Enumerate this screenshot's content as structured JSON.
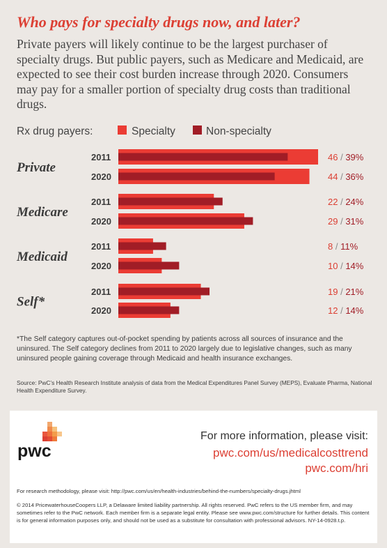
{
  "title": "Who pays for specialty drugs now, and later?",
  "intro": "Private payers will likely continue to be the largest purchaser of specialty drugs. But public payers, such as Medicare and Medicaid, are expected to see their cost burden increase through 2020. Consumers may pay for a smaller portion of specialty drug costs than traditional drugs.",
  "legend": {
    "label": "Rx drug payers:",
    "specialty": "Specialty",
    "nonspecialty": "Non-specialty"
  },
  "colors": {
    "specialty": "#eb3c34",
    "nonspecialty": "#a11d26",
    "accent": "#dc3f33",
    "background": "#ece8e4"
  },
  "chart_data": {
    "type": "bar",
    "orientation": "horizontal",
    "series": [
      {
        "name": "Specialty"
      },
      {
        "name": "Non-specialty"
      }
    ],
    "groups": [
      {
        "name": "Private",
        "rows": [
          {
            "year": "2011",
            "specialty": 46,
            "nonspecialty": 39
          },
          {
            "year": "2020",
            "specialty": 44,
            "nonspecialty": 36
          }
        ]
      },
      {
        "name": "Medicare",
        "rows": [
          {
            "year": "2011",
            "specialty": 22,
            "nonspecialty": 24
          },
          {
            "year": "2020",
            "specialty": 29,
            "nonspecialty": 31
          }
        ]
      },
      {
        "name": "Medicaid",
        "rows": [
          {
            "year": "2011",
            "specialty": 8,
            "nonspecialty": 11
          },
          {
            "year": "2020",
            "specialty": 10,
            "nonspecialty": 14
          }
        ]
      },
      {
        "name": "Self*",
        "rows": [
          {
            "year": "2011",
            "specialty": 19,
            "nonspecialty": 21
          },
          {
            "year": "2020",
            "specialty": 12,
            "nonspecialty": 14
          }
        ]
      }
    ],
    "value_suffix": "%",
    "label_format": "{specialty} / {nonspecialty}%"
  },
  "footnote": "*The Self category captures out-of-pocket spending by patients across all sources of insurance and the uninsured. The Self category declines from 2011 to 2020 largely due to legislative changes, such as many uninsured people gaining coverage through Medicaid and health insurance exchanges.",
  "source": "Source: PwC’s Health Research Institute analysis of data from the Medical Expenditures Panel Survey (MEPS), Evaluate Pharma, National Health Expenditure Survey.",
  "footer": {
    "logo_text": "pwc",
    "more_info": "For more information, please visit:",
    "link1": "pwc.com/us/medicalcosttrend",
    "link2": "pwc.com/hri",
    "methodology": "For research methodology, please visit: http://pwc.com/us/en/health-industries/behind-the-numbers/specialty-drugs.jhtml",
    "copyright": "© 2014 PricewaterhouseCoopers LLP, a Delaware limited liability partnership. All rights reserved. PwC refers to the US member firm, and may sometimes refer to the PwC network. Each member firm is a separate legal entity. Please see www.pwc.com/structure for further details. This content is for general information purposes only, and should not be used as a substitute for consultation with professional advisors. NY-14-0928.t.p."
  }
}
